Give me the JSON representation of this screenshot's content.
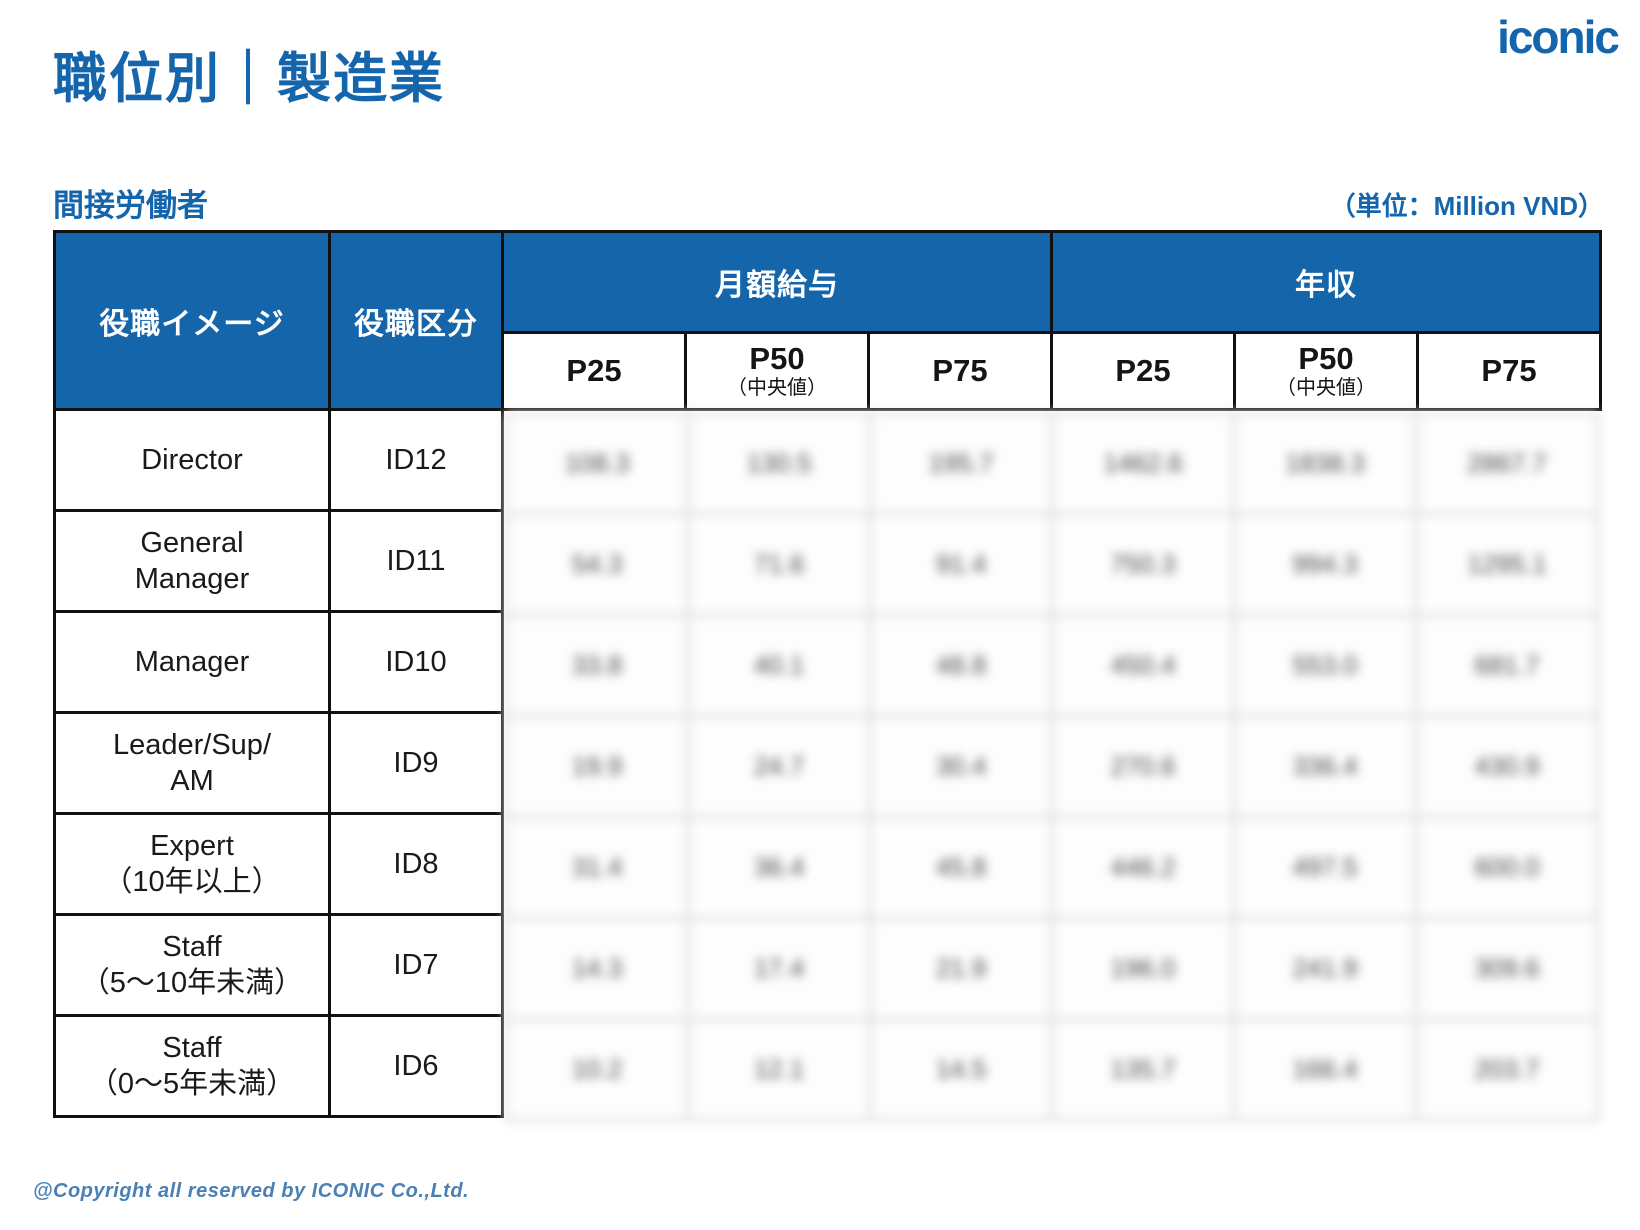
{
  "page": {
    "title": "職位別｜製造業",
    "logo": "iconic",
    "section_label": "間接労働者",
    "unit_note": "（単位：Million VND）",
    "footer": "@Copyright all reserved by ICONIC Co.,Ltd."
  },
  "colors": {
    "brand_blue": "#1565ab",
    "footer_blue": "#4b80b4",
    "border_black": "#111111",
    "blur_grid_gray": "#c6c6c6"
  },
  "table": {
    "headers": {
      "position_image": "役職イメージ",
      "position_class": "役職区分",
      "monthly_salary": "月額給与",
      "annual_income": "年収",
      "p25": "P25",
      "p50": "P50",
      "p50_sub": "（中央値）",
      "p75": "P75"
    },
    "note": "data cells are blurred/unreadable in source; values are approximations",
    "rows": [
      {
        "label": [
          "Director"
        ],
        "id": "ID12",
        "values": [
          "108.3",
          "130.5",
          "195.7",
          "1462.6",
          "1838.3",
          "2867.7"
        ]
      },
      {
        "label": [
          "General",
          "Manager"
        ],
        "id": "ID11",
        "values": [
          "54.3",
          "71.6",
          "91.4",
          "750.3",
          "994.3",
          "1295.1"
        ]
      },
      {
        "label": [
          "Manager"
        ],
        "id": "ID10",
        "values": [
          "33.8",
          "40.1",
          "48.8",
          "450.4",
          "553.0",
          "681.7"
        ]
      },
      {
        "label": [
          "Leader/Sup/",
          "AM"
        ],
        "id": "ID9",
        "values": [
          "19.9",
          "24.7",
          "30.4",
          "270.6",
          "336.4",
          "430.9"
        ]
      },
      {
        "label": [
          "Expert",
          "（10年以上）"
        ],
        "id": "ID8",
        "values": [
          "31.4",
          "36.4",
          "45.8",
          "446.2",
          "497.5",
          "600.0"
        ]
      },
      {
        "label": [
          "Staff",
          "（5〜10年未満）"
        ],
        "id": "ID7",
        "values": [
          "14.3",
          "17.4",
          "21.9",
          "196.0",
          "241.9",
          "309.6"
        ]
      },
      {
        "label": [
          "Staff",
          "（0〜5年未満）"
        ],
        "id": "ID6",
        "values": [
          "10.2",
          "12.1",
          "14.5",
          "135.7",
          "166.4",
          "203.7"
        ]
      }
    ]
  }
}
